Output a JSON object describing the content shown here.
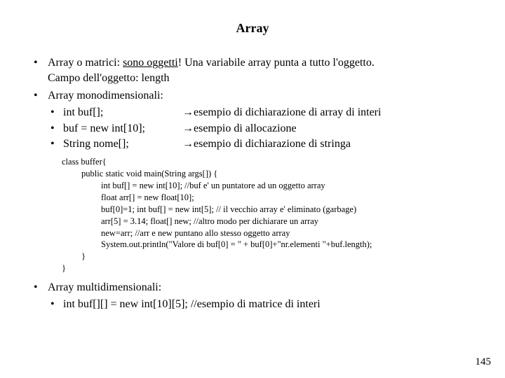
{
  "title": "Array",
  "bullets": {
    "b1_line1": "Array o matrici: ",
    "b1_underlined": "sono oggetti",
    "b1_rest": "! Una variabile array punta a tutto l'oggetto.",
    "b1_line2": "Campo dell'oggetto: length",
    "b2": "Array monodimensionali:",
    "sub1_left": "int buf[];",
    "sub1_arrow": "→",
    "sub1_right": " esempio di dichiarazione di array di interi",
    "sub2_left": "buf = new int[10];",
    "sub2_arrow": "→",
    "sub2_right": " esempio di allocazione",
    "sub3_left": "String nome[];",
    "sub3_arrow": "→",
    "sub3_right": " esempio di dichiarazione di stringa",
    "b3": "Array multidimensionali:",
    "b3_sub": "int buf[][] = new int[10][5]; //esempio di matrice di interi"
  },
  "code": {
    "c1": "class  buffer{",
    "c2": "public static void main(String args[]) {",
    "c3": "int buf[] = new int[10]; //buf e' un puntatore ad un oggetto array",
    "c4": "float arr[] = new float[10];",
    "c5": "buf[0]=1; int buf[] = new int[5]; // il vecchio array e' eliminato (garbage)",
    "c6": "arr[5] = 3.14;  float[] new; //altro modo per dichiarare un array",
    "c7": " new=arr; //arr e new puntano allo stesso oggetto array",
    "c8": "System.out.println(\"Valore di buf[0] = \" + buf[0]+\"nr.elementi \"+buf.length);",
    "c9": "}",
    "c10": "}"
  },
  "page_number": "145"
}
